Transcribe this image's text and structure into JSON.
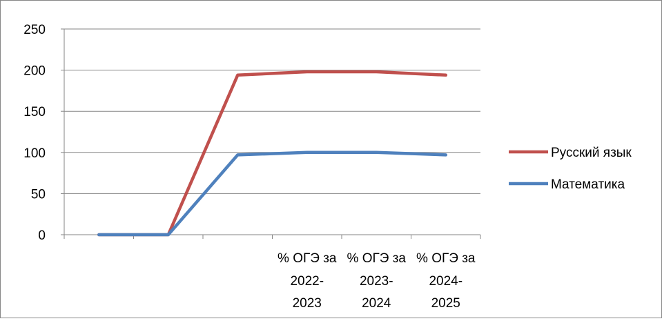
{
  "chart_data": {
    "type": "line",
    "categories": [
      "",
      "",
      "",
      "% ОГЭ за 2022-2023",
      "% ОГЭ за 2023-2024",
      "% ОГЭ за 2024-2025"
    ],
    "category_lines": [
      [],
      [],
      [],
      [
        "% ОГЭ за",
        "2022-",
        "2023"
      ],
      [
        "% ОГЭ за",
        "2023-",
        "2024"
      ],
      [
        "% ОГЭ за",
        "2024-",
        "2025"
      ]
    ],
    "series": [
      {
        "name": "Русский язык",
        "color": "#C0504D",
        "values": [
          0,
          0,
          194,
          198,
          198,
          194
        ]
      },
      {
        "name": "Математика",
        "color": "#4F81BD",
        "values": [
          0,
          0,
          97,
          100,
          100,
          97
        ]
      }
    ],
    "ylim": [
      0,
      250
    ],
    "yticks": [
      0,
      50,
      100,
      150,
      200,
      250
    ],
    "grid": true,
    "legend": "right",
    "title": "",
    "xlabel": "",
    "ylabel": ""
  }
}
